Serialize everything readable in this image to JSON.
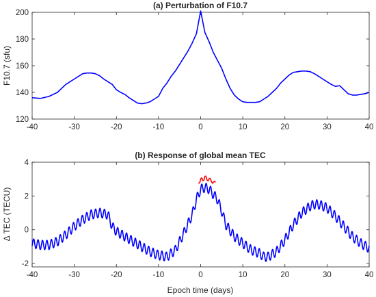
{
  "chart_data": [
    {
      "type": "line",
      "title": "(a) Perturbation of F10.7",
      "xlabel": "",
      "ylabel": "F10.7 (sfu)",
      "xlim": [
        -40,
        40
      ],
      "ylim": [
        120,
        200
      ],
      "xticks": [
        "-40",
        "-30",
        "-20",
        "-10",
        "0",
        "10",
        "20",
        "30",
        "40"
      ],
      "yticks": [
        "120",
        "140",
        "160",
        "180",
        "200"
      ],
      "grid": false,
      "series": [
        {
          "color": "#0000ff",
          "x": [
            -40,
            -38,
            -36,
            -34,
            -33,
            -32,
            -31,
            -30,
            -29,
            -28,
            -27,
            -26,
            -25,
            -24,
            -23,
            -22,
            -21,
            -20,
            -19,
            -18,
            -17,
            -16,
            -15,
            -14,
            -13,
            -12,
            -11,
            -10,
            -9,
            -8,
            -7,
            -6,
            -5,
            -4,
            -3,
            -2,
            -1,
            0,
            1,
            2,
            3,
            4,
            5,
            6,
            7,
            8,
            9,
            10,
            11,
            12,
            13,
            14,
            15,
            16,
            17,
            18,
            19,
            20,
            21,
            22,
            23,
            24,
            25,
            26,
            27,
            28,
            29,
            30,
            31,
            32,
            33,
            34,
            35,
            36,
            37,
            38,
            39,
            40
          ],
          "y": [
            136,
            135.5,
            137,
            140,
            143,
            146,
            148,
            150,
            152,
            154,
            154.5,
            154.5,
            154,
            152.5,
            150,
            148,
            146,
            142,
            140,
            138.5,
            136,
            134,
            132,
            131.5,
            132,
            133,
            135,
            137,
            143,
            147,
            152,
            156,
            161,
            166,
            171,
            177,
            184,
            201,
            185,
            178,
            170,
            164,
            158,
            150,
            143,
            138,
            135,
            133,
            132.5,
            132.5,
            132.5,
            133,
            135,
            137,
            140,
            143,
            147,
            150,
            153,
            155,
            155.5,
            156,
            156,
            155.5,
            154,
            152,
            150,
            148,
            146,
            144.5,
            145,
            142,
            139,
            138,
            138,
            138.5,
            139,
            140
          ]
        }
      ]
    },
    {
      "type": "line",
      "title": "(b) Response of global mean TEC",
      "xlabel": "Epoch time (days)",
      "ylabel": "Δ TEC (TECU)",
      "xlim": [
        -40,
        40
      ],
      "ylim": [
        -2.2,
        4
      ],
      "xticks": [
        "-40",
        "-30",
        "-20",
        "-10",
        "0",
        "10",
        "20",
        "30",
        "40"
      ],
      "yticks": [
        "-2",
        "0",
        "2",
        "4"
      ],
      "grid": false,
      "series": [
        {
          "color": "#0000ff",
          "x": [
            -40,
            -38,
            -36,
            -34,
            -32,
            -30,
            -28,
            -26,
            -24,
            -22,
            -21,
            -20,
            -18,
            -16,
            -14,
            -12,
            -10,
            -8,
            -6,
            -4,
            -2,
            -1,
            0,
            1,
            2,
            3,
            4,
            5,
            6,
            8,
            10,
            12,
            14,
            15,
            16,
            18,
            20,
            22,
            24,
            26,
            27,
            28,
            30,
            32,
            34,
            36,
            38,
            40
          ],
          "y": [
            -0.8,
            -0.9,
            -0.9,
            -0.7,
            -0.3,
            0.2,
            0.6,
            0.9,
            1.0,
            0.9,
            0.2,
            -0.1,
            -0.4,
            -0.7,
            -1.0,
            -1.3,
            -1.5,
            -1.6,
            -1.2,
            -0.2,
            0.9,
            1.8,
            2.4,
            2.5,
            2.4,
            2.1,
            1.8,
            1.1,
            0.3,
            -0.4,
            -0.8,
            -1.2,
            -1.4,
            -1.6,
            -1.6,
            -1.3,
            -0.6,
            0.3,
            1.0,
            1.4,
            1.5,
            1.5,
            1.3,
            0.8,
            0.2,
            -0.4,
            -0.8,
            -1.1
          ]
        },
        {
          "color": "#ff0000",
          "x": [
            -0.5,
            0,
            0.5,
            1,
            1.5,
            2,
            2.5,
            3,
            3.5
          ],
          "y": [
            2.8,
            3.0,
            2.9,
            3.2,
            2.9,
            3.1,
            2.8,
            2.9,
            2.7
          ]
        }
      ]
    }
  ]
}
